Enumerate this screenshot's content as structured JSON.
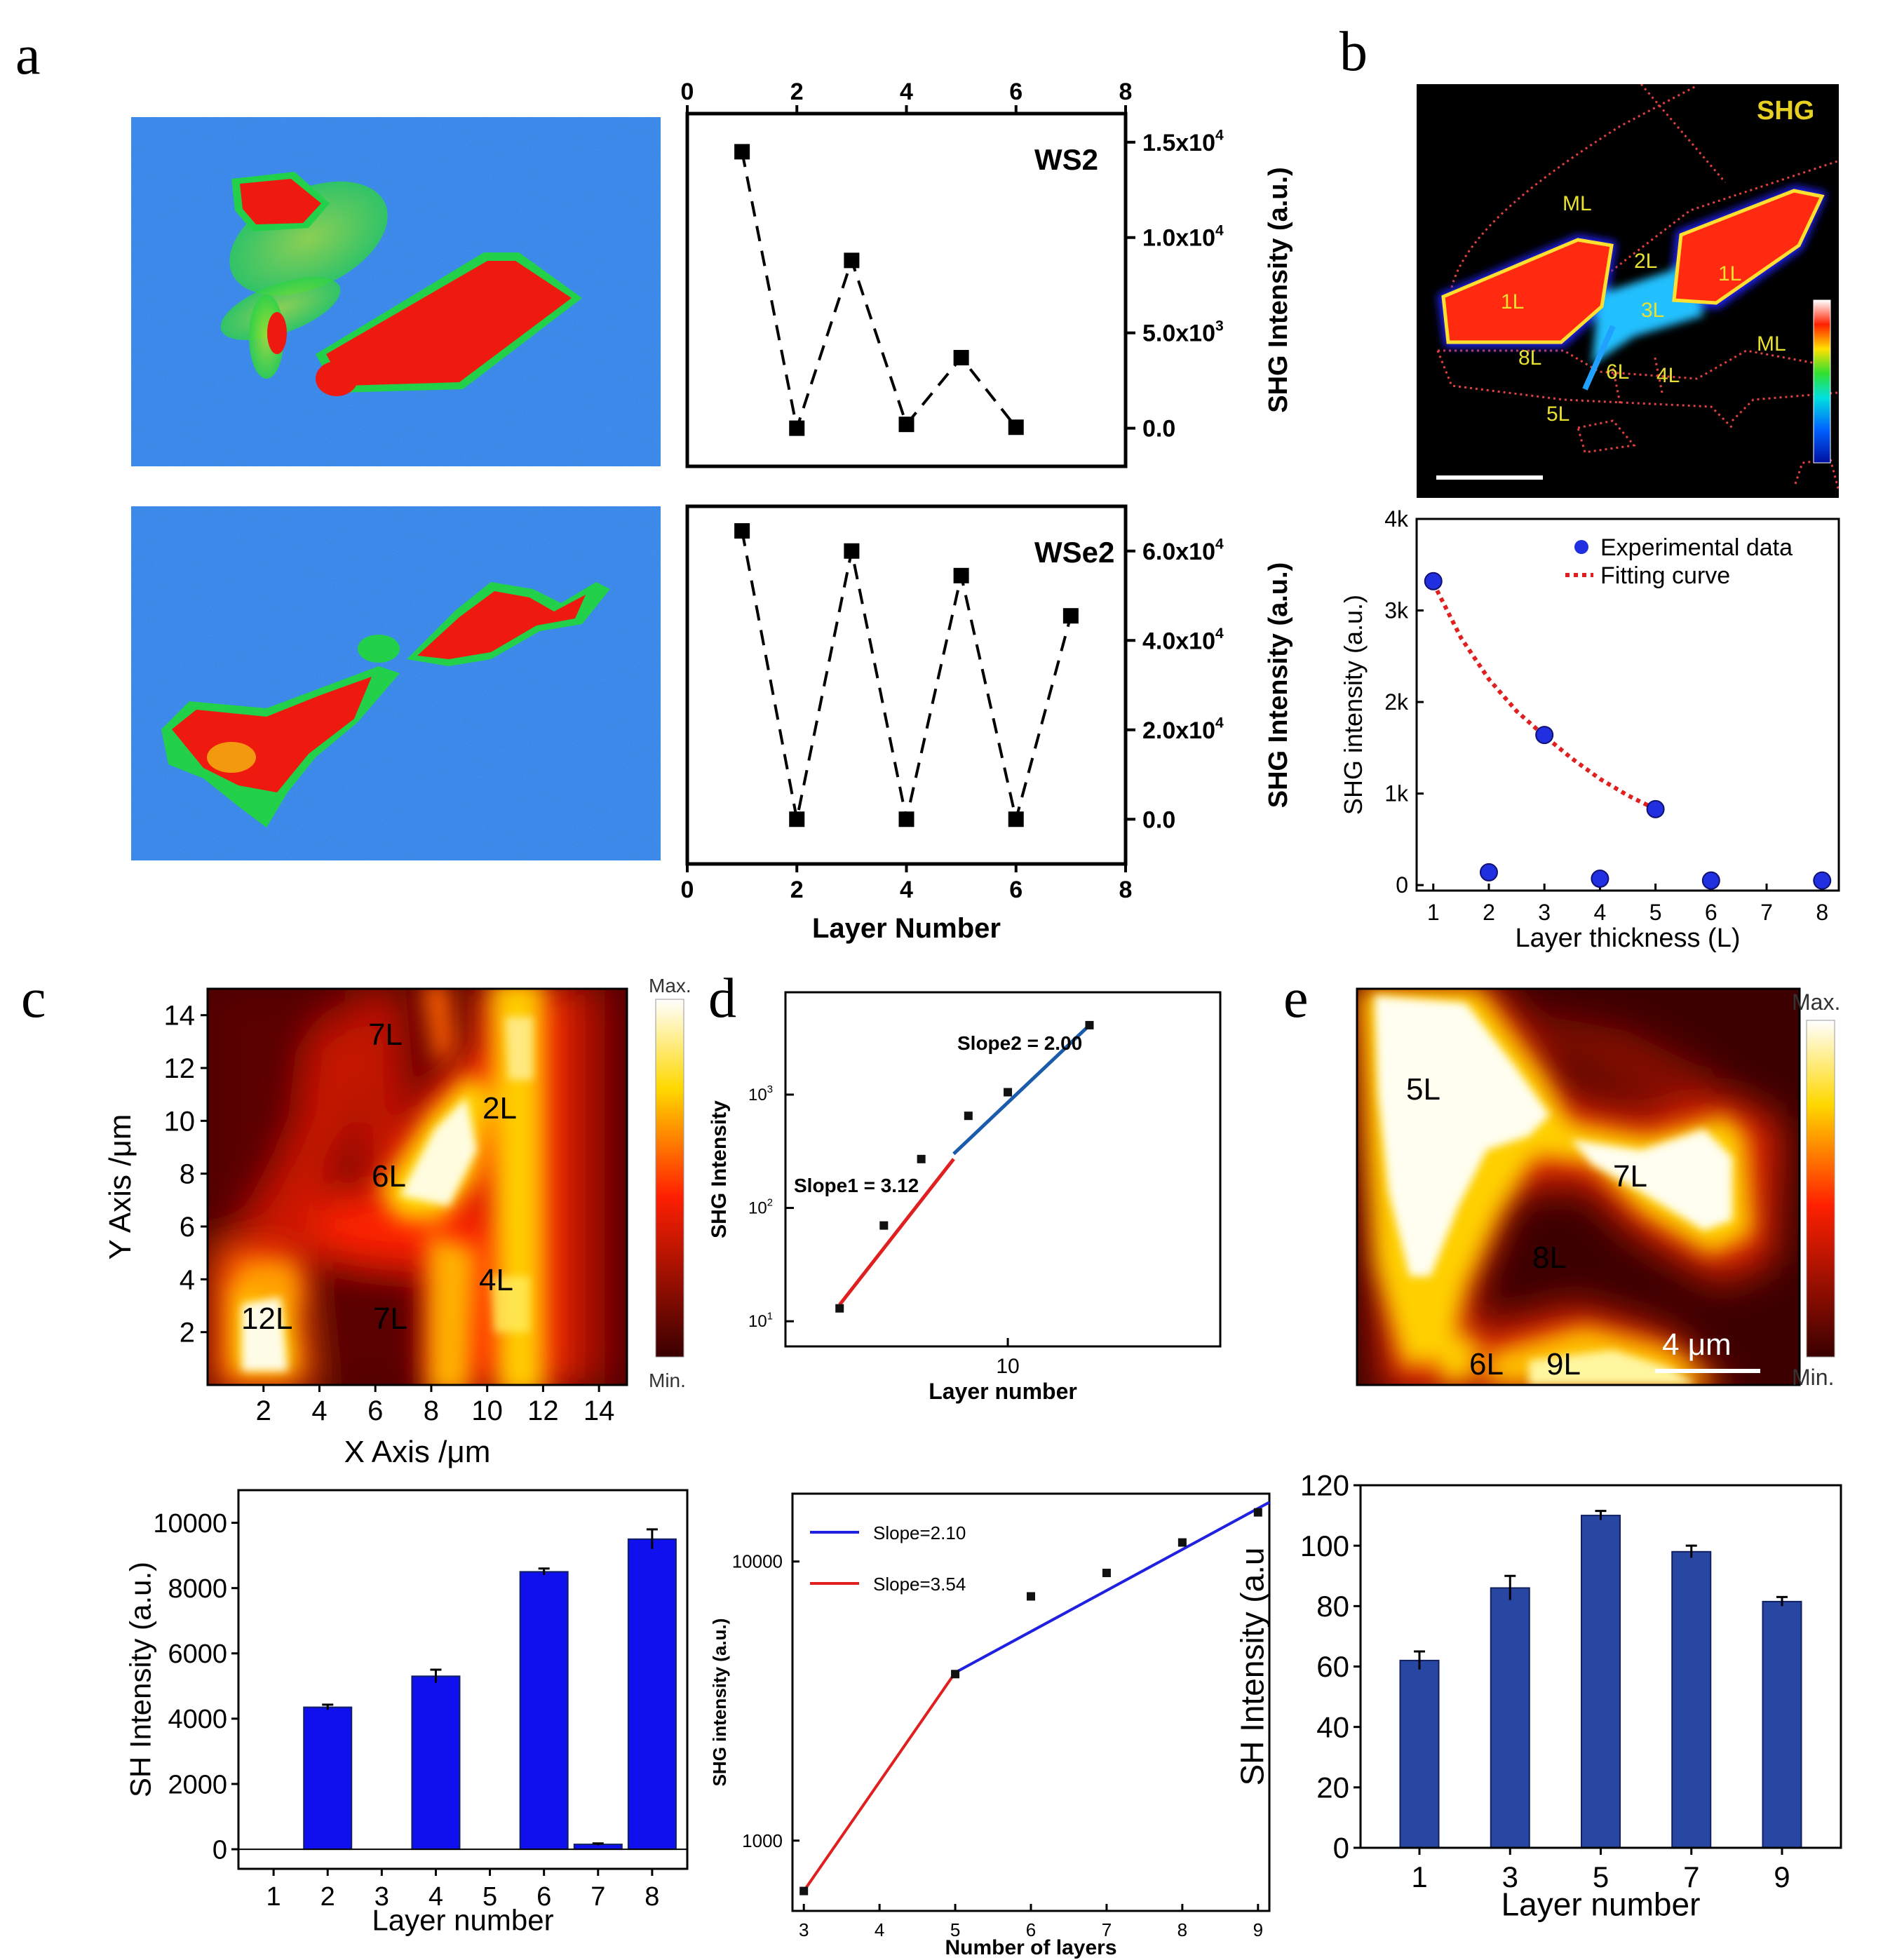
{
  "figure": {
    "panels": {
      "a": "a",
      "b": "b",
      "c": "c",
      "d": "d",
      "e": "e"
    },
    "colors": {
      "heatmap_bg": "#2f7fe6",
      "heatmap_mid": "#22d04a",
      "heatmap_hot": "#ee1a10",
      "bar_blue": "#1010ee",
      "bar_navy": "#2747a3",
      "fit_red": "#e02020",
      "fit_blue": "#1a5cab"
    },
    "map_c": {
      "labels": [
        "7L",
        "2L",
        "6L",
        "4L",
        "12L",
        "7L"
      ],
      "colorbar_max": "Max.",
      "colorbar_min": "Min."
    },
    "map_e": {
      "labels": [
        "5L",
        "7L",
        "8L",
        "6L",
        "9L"
      ],
      "scale": "4 μm",
      "colorbar_max": "Max.",
      "colorbar_min": "Min."
    },
    "image_b": {
      "title": "SHG",
      "labels": [
        "ML",
        "2L",
        "1L",
        "1L",
        "3L",
        "8L",
        "6L",
        "4L",
        "ML",
        "5L"
      ]
    }
  },
  "chart_data": [
    {
      "id": "a-ws2",
      "type": "line",
      "marker": "square",
      "linestyle": "dashed",
      "title": "WS2",
      "xlabel": "",
      "ylabel": "SHG Intensity (a.u.)",
      "xlim": [
        0,
        8
      ],
      "ylim": [
        -2000,
        16500
      ],
      "xticks": [
        0,
        2,
        4,
        6,
        8
      ],
      "xtick_labels": [
        "0",
        "2",
        "4",
        "6",
        "8"
      ],
      "yticks": [
        0,
        5000,
        10000,
        15000
      ],
      "ytick_labels": [
        "0.0",
        "5.0x10",
        "1.0x10",
        "1.5x10"
      ],
      "ytick_exps": [
        "",
        "3",
        "4",
        "4"
      ],
      "x": [
        1,
        2,
        3,
        4,
        5,
        6
      ],
      "y": [
        14500,
        0,
        8800,
        200,
        3700,
        50
      ]
    },
    {
      "id": "a-wse2",
      "type": "line",
      "marker": "square",
      "linestyle": "dashed",
      "title": "WSe2",
      "xlabel": "Layer Number",
      "ylabel": "SHG Intensity (a.u.)",
      "xlim": [
        0,
        8
      ],
      "ylim": [
        -10000,
        70000
      ],
      "xticks": [
        0,
        2,
        4,
        6,
        8
      ],
      "xtick_labels": [
        "0",
        "2",
        "4",
        "6",
        "8"
      ],
      "yticks": [
        0,
        20000,
        40000,
        60000
      ],
      "ytick_labels": [
        "0.0",
        "2.0x10",
        "4.0x10",
        "6.0x10"
      ],
      "ytick_exps": [
        "",
        "4",
        "4",
        "4"
      ],
      "x": [
        1,
        2,
        3,
        4,
        5,
        6,
        7
      ],
      "y": [
        64500,
        0,
        60000,
        0,
        54500,
        0,
        45500
      ]
    },
    {
      "id": "b",
      "type": "scatter",
      "xlabel": "Layer thickness (L)",
      "ylabel": "SHG intensity (a.u.)",
      "xlim": [
        0.7,
        8.3
      ],
      "ylim": [
        -60,
        4000
      ],
      "xticks": [
        1,
        2,
        3,
        4,
        5,
        6,
        7,
        8
      ],
      "xtick_labels": [
        "1",
        "2",
        "3",
        "4",
        "5",
        "6",
        "7",
        "8"
      ],
      "yticks": [
        0,
        1000,
        2000,
        3000,
        4000
      ],
      "ytick_labels": [
        "0",
        "1k",
        "2k",
        "3k",
        "4k"
      ],
      "series": [
        {
          "name": "Experimental data",
          "x": [
            1,
            2,
            3,
            4,
            5,
            6,
            8
          ],
          "y": [
            3320,
            140,
            1640,
            70,
            830,
            50,
            50
          ]
        },
        {
          "name": "Fitting curve",
          "x": [
            1,
            1.5,
            2,
            2.5,
            3,
            3.5,
            4,
            4.5,
            5
          ],
          "y": [
            3300,
            2700,
            2250,
            1900,
            1630,
            1380,
            1160,
            980,
            830
          ]
        }
      ],
      "legend": "top-right"
    },
    {
      "id": "c-map",
      "type": "heatmap",
      "xlabel": "X Axis /μm",
      "ylabel": "Y Axis /μm",
      "xlim": [
        0,
        15
      ],
      "ylim": [
        0,
        15
      ],
      "xticks": [
        2,
        4,
        6,
        8,
        10,
        12,
        14
      ],
      "xtick_labels": [
        "2",
        "4",
        "6",
        "8",
        "10",
        "12",
        "14"
      ],
      "yticks": [
        2,
        4,
        6,
        8,
        10,
        12,
        14
      ],
      "ytick_labels": [
        "2",
        "4",
        "6",
        "8",
        "10",
        "12",
        "14"
      ]
    },
    {
      "id": "d-top",
      "type": "line",
      "scale": "log-log",
      "xlabel": "Layer number",
      "ylabel": "SHG Intensity",
      "xlim": [
        4,
        24
      ],
      "ylim": [
        6,
        8000
      ],
      "xticks": [
        10
      ],
      "xtick_labels": [
        "10"
      ],
      "yticks": [
        10,
        100,
        1000
      ],
      "ytick_labels": [
        "10",
        "10",
        "10"
      ],
      "ytick_exps": [
        "1",
        "2",
        "3"
      ],
      "points": {
        "x": [
          5,
          6,
          7,
          8.5,
          10,
          14
        ],
        "y": [
          13,
          70,
          270,
          650,
          1050,
          4100
        ]
      },
      "fits": [
        {
          "name": "Slope1 = 3.12",
          "x": [
            5,
            8
          ],
          "y": [
            14,
            270
          ]
        },
        {
          "name": "Slope2 = 2.00",
          "x": [
            8,
            14
          ],
          "y": [
            300,
            4100
          ]
        }
      ]
    },
    {
      "id": "d-bottom",
      "type": "line",
      "scale": "log-y",
      "xlabel": "Number of layers",
      "ylabel": "SHG intensity (a.u.)",
      "xlim": [
        2.85,
        9.15
      ],
      "ylim": [
        560,
        17500
      ],
      "xticks": [
        3,
        4,
        5,
        6,
        7,
        8,
        9
      ],
      "xtick_labels": [
        "3",
        "4",
        "5",
        "6",
        "7",
        "8",
        "9"
      ],
      "yticks": [
        1000,
        10000
      ],
      "ytick_labels": [
        "1000",
        "10000"
      ],
      "points": {
        "x": [
          3,
          5,
          6,
          7,
          8,
          9
        ],
        "y": [
          660,
          3950,
          7500,
          9100,
          11700,
          15000
        ]
      },
      "fits": [
        {
          "name": "Slope=2.10",
          "x": [
            5,
            9.15
          ],
          "y": [
            4000,
            16300
          ]
        },
        {
          "name": "Slope=3.54",
          "x": [
            3,
            5
          ],
          "y": [
            660,
            4000
          ]
        }
      ],
      "legend": "top-left"
    },
    {
      "id": "c-bar",
      "type": "bar",
      "xlabel": "Layer number",
      "ylabel": "SH Intensity (a.u.)",
      "categories": [
        "1",
        "2",
        "3",
        "4",
        "5",
        "6",
        "7",
        "8"
      ],
      "values": [
        0,
        4350,
        0,
        5300,
        0,
        8500,
        150,
        9500
      ],
      "errors": [
        0,
        80,
        0,
        200,
        0,
        100,
        30,
        300
      ],
      "ylim": [
        -600,
        11000
      ],
      "yticks": [
        0,
        2000,
        4000,
        6000,
        8000,
        10000
      ],
      "ytick_labels": [
        "0",
        "2000",
        "4000",
        "6000",
        "8000",
        "10000"
      ]
    },
    {
      "id": "e-bar",
      "type": "bar",
      "xlabel": "Layer number",
      "ylabel": "SH Intensity (a.u",
      "categories": [
        "1",
        "3",
        "5",
        "7",
        "9"
      ],
      "values": [
        62,
        86,
        110,
        98,
        81.5
      ],
      "errors": [
        3,
        4,
        1.5,
        2,
        1.5
      ],
      "ylim": [
        0,
        120
      ],
      "yticks": [
        0,
        20,
        40,
        60,
        80,
        100,
        120
      ],
      "ytick_labels": [
        "0",
        "20",
        "40",
        "60",
        "80",
        "100",
        "120"
      ]
    }
  ]
}
